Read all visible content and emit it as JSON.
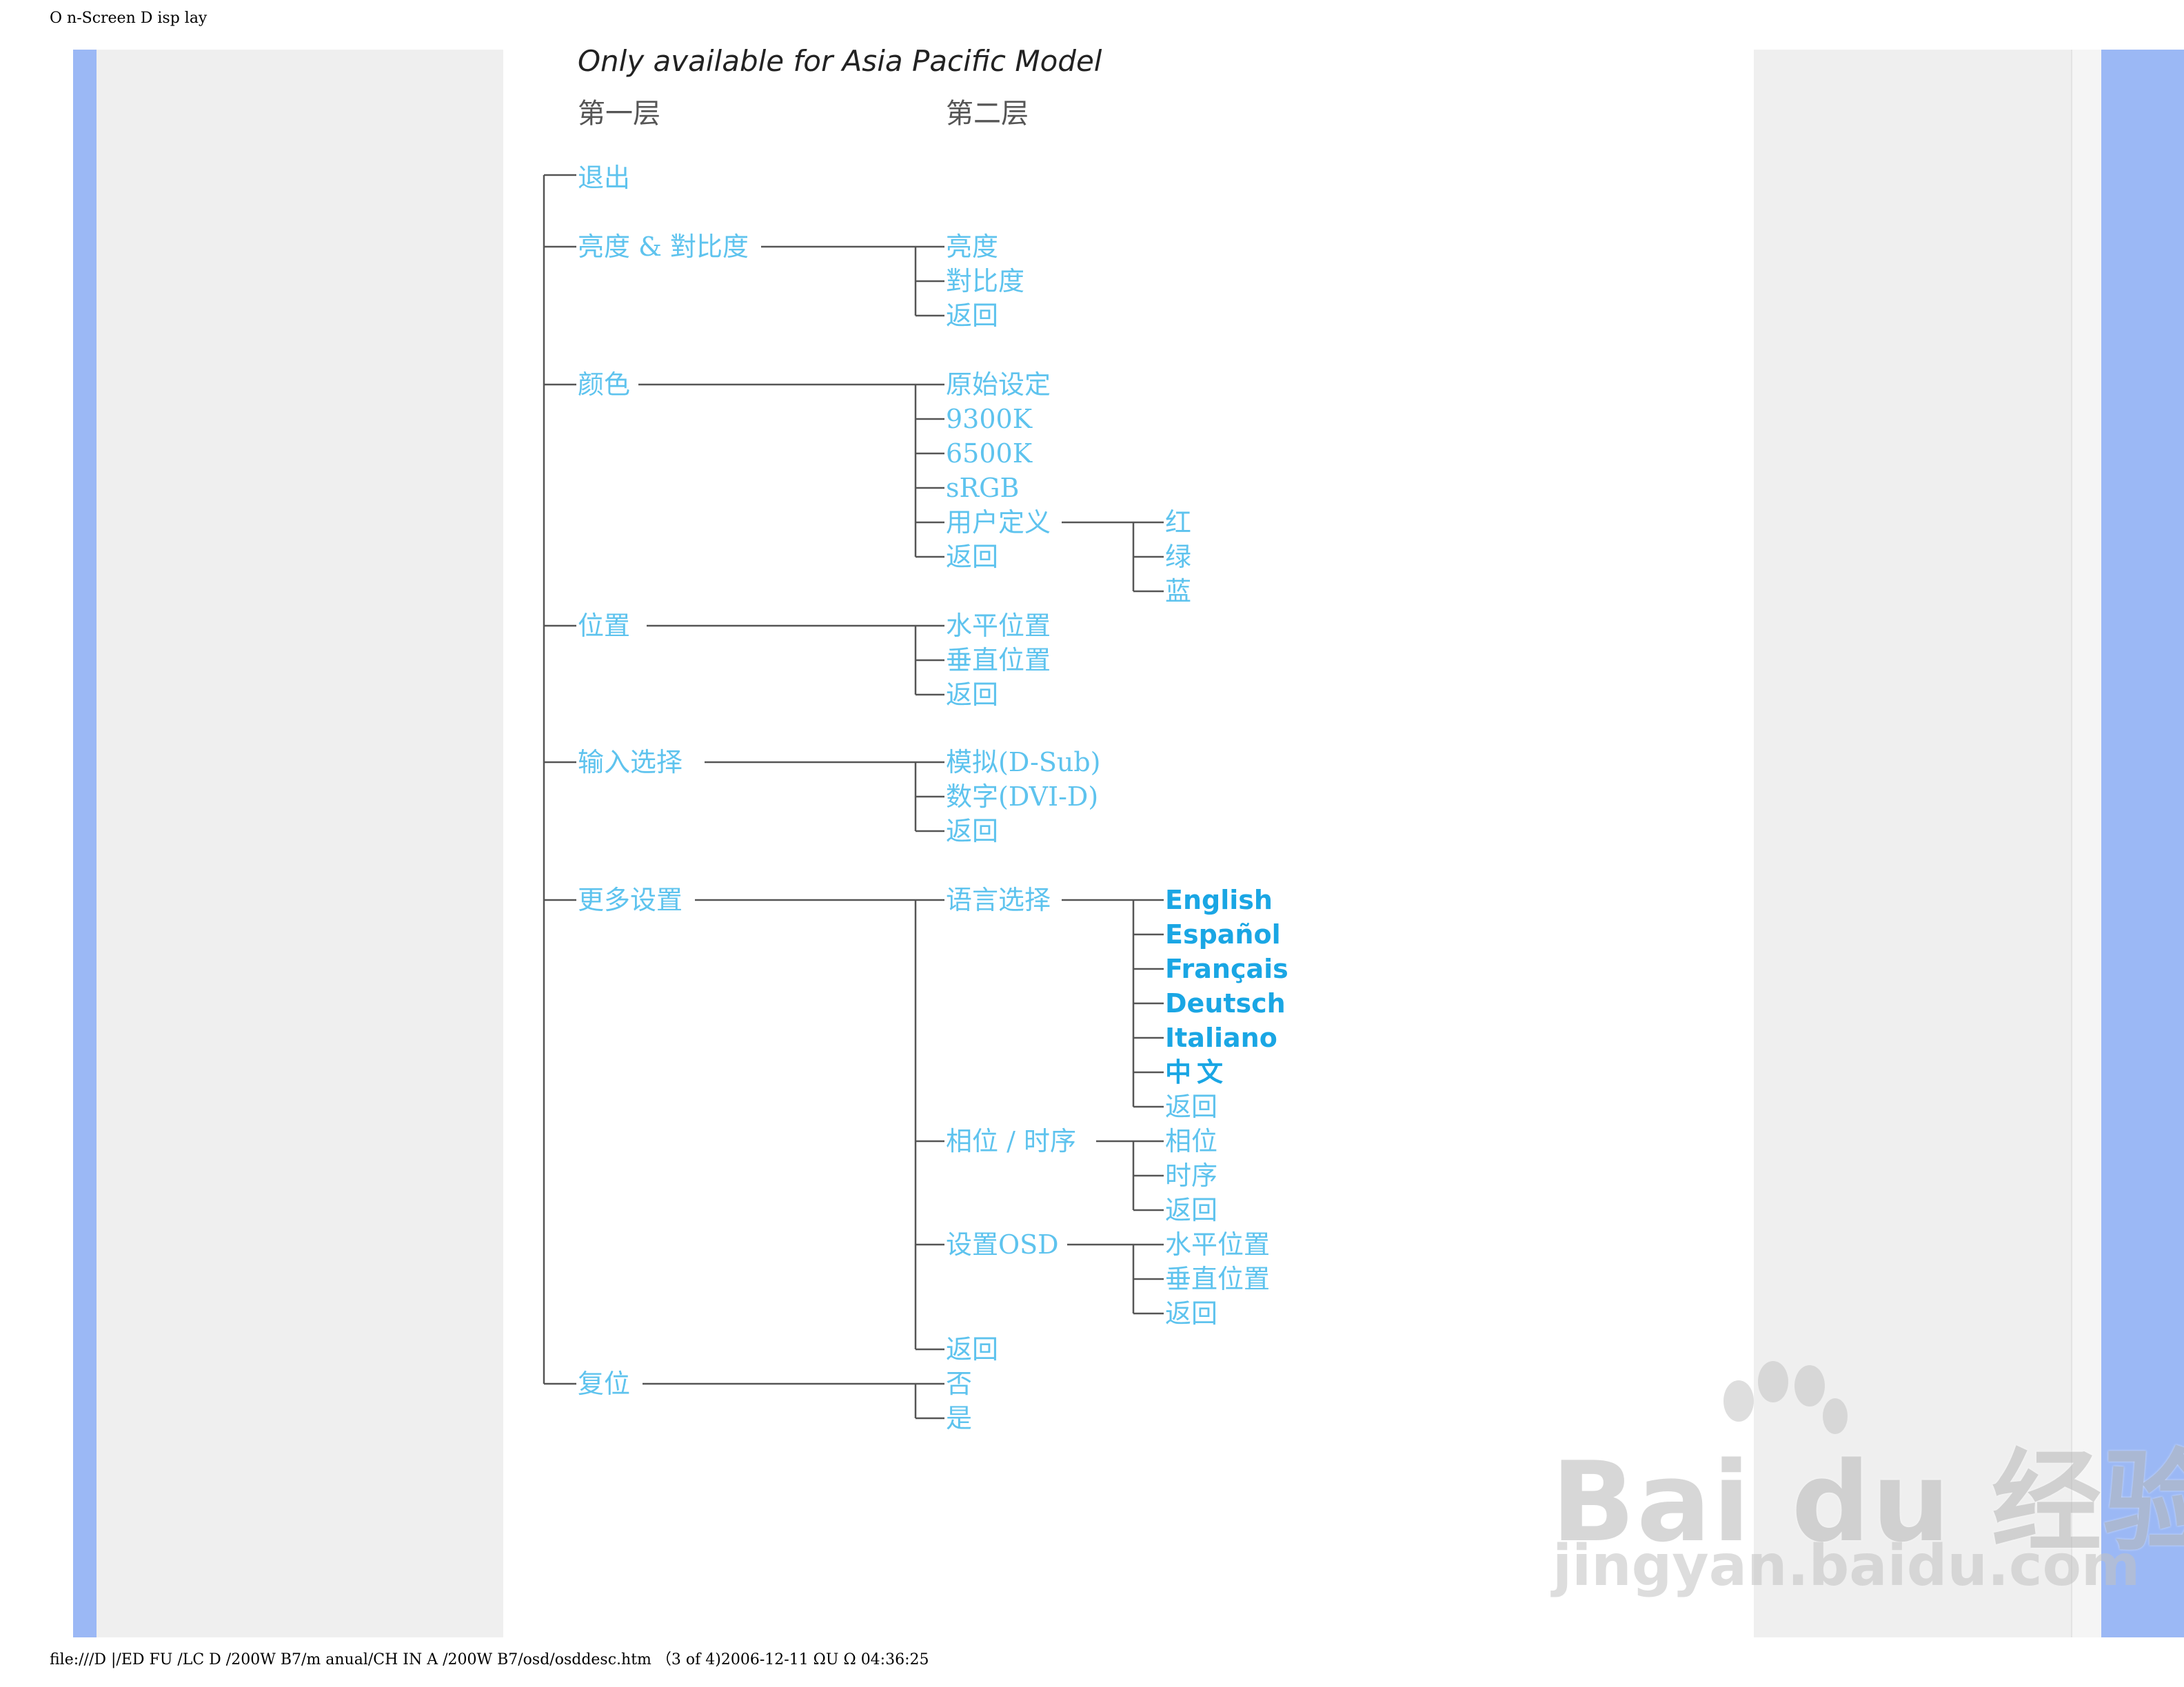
{
  "header": {
    "title": "O n-Screen D isp lay"
  },
  "footer": {
    "path": "file:///D |/ED FU /LC D /200W B7/m anual/CH IN A /200W B7/osd/osddesc.htm （3 of 4)2006-12-11 ΩU Ω    04:36:25"
  },
  "diagram": {
    "title": "Only available for Asia Pacific Model",
    "level1_header": "第一层",
    "level2_header": "第二层",
    "level1": [
      {
        "label": "退出"
      },
      {
        "label": "亮度 & 對比度",
        "children": [
          {
            "label": "亮度"
          },
          {
            "label": "對比度"
          },
          {
            "label": "返回"
          }
        ]
      },
      {
        "label": "颜色",
        "children": [
          {
            "label": "原始设定"
          },
          {
            "label": "9300K"
          },
          {
            "label": "6500K"
          },
          {
            "label": "sRGB"
          },
          {
            "label": "用户定义",
            "children": [
              {
                "label": "红"
              },
              {
                "label": "绿"
              },
              {
                "label": "蓝"
              }
            ]
          },
          {
            "label": "返回"
          }
        ]
      },
      {
        "label": "位置",
        "children": [
          {
            "label": "水平位置"
          },
          {
            "label": "垂直位置"
          },
          {
            "label": "返回"
          }
        ]
      },
      {
        "label": "输入选择",
        "children": [
          {
            "label": "模拟(D-Sub)"
          },
          {
            "label": "数字(DVI-D)"
          },
          {
            "label": "返回"
          }
        ]
      },
      {
        "label": "更多设置",
        "children": [
          {
            "label": "语言选择",
            "children": [
              {
                "label": "English"
              },
              {
                "label": "Español"
              },
              {
                "label": "Français"
              },
              {
                "label": "Deutsch"
              },
              {
                "label": "Italiano"
              },
              {
                "label": "中文"
              },
              {
                "label": "返回"
              }
            ]
          },
          {
            "label": "相位 / 时序",
            "children": [
              {
                "label": "相位"
              },
              {
                "label": "时序"
              },
              {
                "label": "返回"
              }
            ]
          },
          {
            "label": "设置OSD",
            "children": [
              {
                "label": "水平位置"
              },
              {
                "label": "垂直位置"
              },
              {
                "label": "返回"
              }
            ]
          },
          {
            "label": "返回"
          }
        ]
      },
      {
        "label": "复位",
        "children": [
          {
            "label": "否"
          },
          {
            "label": "是"
          }
        ]
      }
    ]
  },
  "watermark": {
    "brand": "Bai du 经验",
    "domain": "jingyan.baidu.com"
  },
  "colors": {
    "node_text": "#5ec3ee",
    "language_text": "#1aa6e4",
    "connector": "#555555",
    "side_blue": "#9bb8f5",
    "side_gray": "#efefef"
  }
}
